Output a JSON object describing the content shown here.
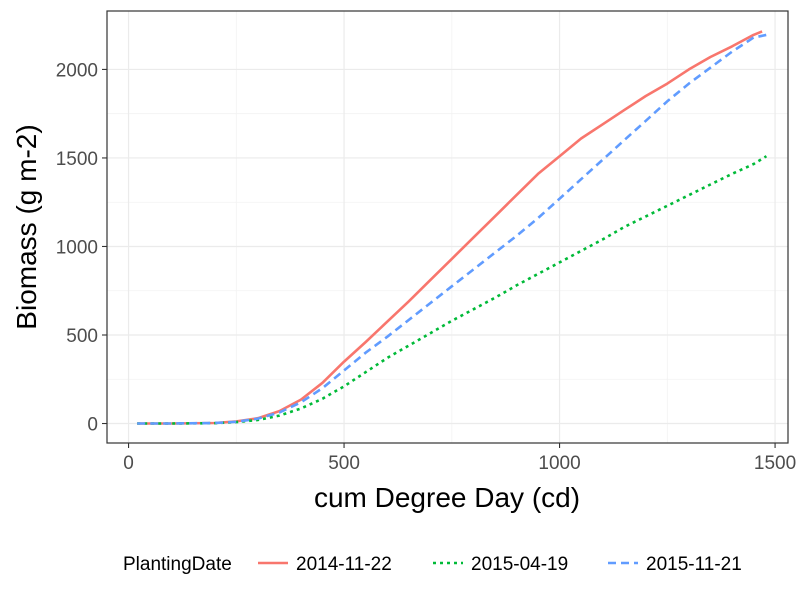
{
  "chart_data": {
    "type": "line",
    "xlabel": "cum Degree Day (cd)",
    "ylabel": "Biomass (g m-2)",
    "xlim": [
      -50,
      1530
    ],
    "ylim": [
      -110,
      2330
    ],
    "x_ticks": [
      0,
      500,
      1000,
      1500
    ],
    "y_ticks": [
      0,
      500,
      1000,
      1500,
      2000
    ],
    "x_tick_labels": [
      "0",
      "500",
      "1000",
      "1500"
    ],
    "y_tick_labels": [
      "0",
      "500",
      "1000",
      "1500",
      "2000"
    ],
    "grid": true,
    "legend_position": "bottom",
    "legend_title": "PlantingDate",
    "series": [
      {
        "name": "2014-11-22",
        "color": "#F8766D",
        "dash": "solid",
        "x": [
          20,
          100,
          200,
          250,
          300,
          350,
          400,
          450,
          500,
          550,
          600,
          650,
          700,
          750,
          800,
          850,
          900,
          950,
          1000,
          1050,
          1100,
          1150,
          1200,
          1250,
          1300,
          1350,
          1400,
          1450,
          1470
        ],
        "y": [
          0,
          0,
          3,
          12,
          30,
          70,
          135,
          230,
          350,
          460,
          575,
          690,
          810,
          930,
          1050,
          1170,
          1290,
          1410,
          1510,
          1610,
          1690,
          1770,
          1850,
          1920,
          2000,
          2070,
          2130,
          2195,
          2215
        ]
      },
      {
        "name": "2015-04-19",
        "color": "#00BA38",
        "dash": "dotted",
        "x": [
          20,
          100,
          200,
          250,
          300,
          350,
          400,
          450,
          500,
          550,
          600,
          650,
          700,
          750,
          800,
          850,
          900,
          950,
          1000,
          1050,
          1100,
          1150,
          1200,
          1250,
          1300,
          1350,
          1400,
          1450,
          1480
        ],
        "y": [
          0,
          0,
          2,
          8,
          20,
          45,
          85,
          140,
          210,
          290,
          370,
          440,
          510,
          580,
          645,
          710,
          780,
          845,
          910,
          975,
          1040,
          1110,
          1170,
          1230,
          1290,
          1350,
          1410,
          1465,
          1510
        ]
      },
      {
        "name": "2015-11-21",
        "color": "#619CFF",
        "dash": "dashed",
        "x": [
          20,
          100,
          200,
          250,
          300,
          350,
          400,
          450,
          500,
          550,
          600,
          650,
          700,
          750,
          800,
          850,
          900,
          950,
          1000,
          1050,
          1100,
          1150,
          1200,
          1250,
          1300,
          1350,
          1400,
          1450,
          1480
        ],
        "y": [
          0,
          0,
          3,
          10,
          28,
          62,
          120,
          200,
          300,
          400,
          490,
          585,
          680,
          775,
          870,
          965,
          1060,
          1160,
          1270,
          1380,
          1490,
          1600,
          1710,
          1820,
          1920,
          2010,
          2100,
          2180,
          2195
        ]
      }
    ]
  }
}
